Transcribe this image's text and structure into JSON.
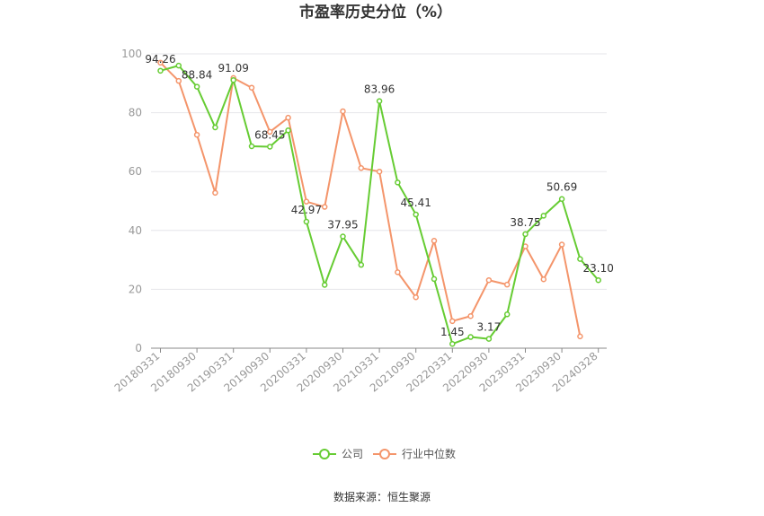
{
  "chart_data": {
    "type": "line",
    "title": "市盈率历史分位（%）",
    "source": "数据来源：恒生聚源",
    "ylim": [
      0,
      100
    ],
    "yticks": [
      0,
      20,
      40,
      60,
      80,
      100
    ],
    "grid": true,
    "legend_position": "bottom",
    "x_tick_labels": [
      "20180331",
      "20180930",
      "20190331",
      "20190930",
      "20200331",
      "20200930",
      "20210331",
      "20210930",
      "20220331",
      "20220930",
      "20230331",
      "20230930",
      "20240328"
    ],
    "series": [
      {
        "name": "公司",
        "color": "#66cc33",
        "values": [
          94.26,
          96.0,
          88.84,
          75.0,
          91.09,
          68.6,
          68.45,
          74.0,
          42.97,
          21.5,
          37.95,
          28.3,
          83.96,
          56.3,
          45.41,
          23.5,
          1.45,
          3.8,
          3.17,
          11.5,
          38.75,
          45.0,
          50.69,
          30.3,
          23.1
        ],
        "labels": {
          "0": "94.26",
          "2": "88.84",
          "4": "91.09",
          "6": "68.45",
          "8": "42.97",
          "10": "37.95",
          "12": "83.96",
          "14": "45.41",
          "16": "1.45",
          "18": "3.17",
          "20": "38.75",
          "22": "50.69",
          "24": "23.10"
        }
      },
      {
        "name": "行业中位数",
        "color": "#f4956b",
        "values": [
          97.0,
          90.8,
          72.5,
          52.8,
          91.8,
          88.5,
          73.5,
          78.3,
          49.8,
          48.0,
          80.5,
          61.2,
          60.0,
          25.8,
          17.3,
          36.5,
          9.2,
          10.9,
          23.1,
          21.6,
          34.6,
          23.4,
          35.2,
          4.0,
          null
        ]
      }
    ]
  }
}
